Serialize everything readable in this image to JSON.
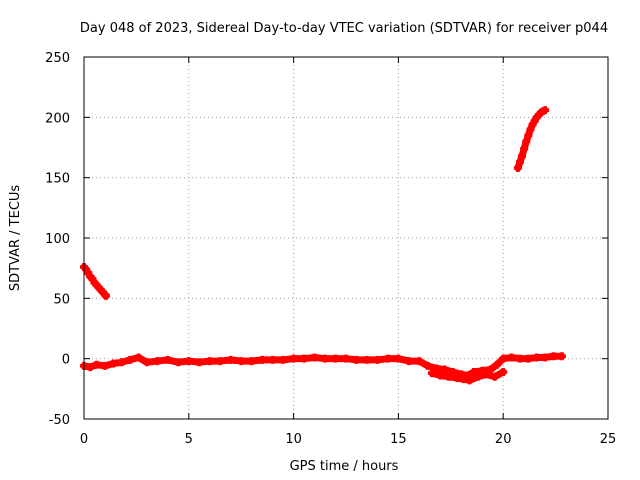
{
  "chart_data": {
    "type": "scatter",
    "title": "Day 048 of 2023, Sidereal Day-to-day VTEC variation (SDTVAR) for receiver p044",
    "xlabel": "GPS time / hours",
    "ylabel": "SDTVAR / TECUs",
    "xlim": [
      0,
      25
    ],
    "ylim": [
      -50,
      250
    ],
    "xticks": [
      0,
      5,
      10,
      15,
      20,
      25
    ],
    "yticks": [
      -50,
      0,
      50,
      100,
      150,
      200,
      250
    ],
    "grid": true,
    "marker": "plus",
    "color": "#ff0000",
    "series": [
      {
        "name": "segment-early-descent",
        "x": [
          0.0,
          0.1,
          0.2,
          0.3,
          0.4,
          0.5,
          0.6,
          0.7,
          0.8,
          0.9,
          1.0,
          1.05
        ],
        "y": [
          76,
          74,
          71,
          68,
          66,
          63,
          61,
          59,
          57,
          55,
          53,
          52
        ]
      },
      {
        "name": "segment-late-rise",
        "x": [
          20.7,
          20.8,
          20.9,
          21.0,
          21.1,
          21.2,
          21.3,
          21.4,
          21.5,
          21.6,
          21.7,
          21.8,
          21.9,
          22.0
        ],
        "y": [
          158,
          163,
          168,
          174,
          180,
          185,
          190,
          194,
          197,
          200,
          202,
          204,
          205,
          206
        ]
      },
      {
        "name": "segment-baseline",
        "x": [
          0.0,
          0.3,
          0.6,
          1.0,
          1.4,
          1.8,
          2.2,
          2.6,
          3.0,
          3.5,
          4.0,
          4.5,
          5.0,
          5.5,
          6.0,
          6.5,
          7.0,
          7.5,
          8.0,
          8.5,
          9.0,
          9.5,
          10.0,
          10.5,
          11.0,
          11.5,
          12.0,
          12.5,
          13.0,
          13.5,
          14.0,
          14.5,
          15.0,
          15.5,
          16.0,
          16.4,
          16.8,
          17.2,
          17.6,
          18.0,
          18.3,
          18.6,
          19.0,
          19.4,
          19.7,
          20.0,
          20.4,
          20.8,
          21.2,
          21.6,
          22.0,
          22.4,
          22.8
        ],
        "y": [
          -6,
          -7,
          -5,
          -6,
          -4,
          -3,
          -1,
          1,
          -3,
          -2,
          -1,
          -3,
          -2,
          -3,
          -2,
          -2,
          -1,
          -2,
          -2,
          -1,
          -1,
          -1,
          0,
          0,
          1,
          0,
          0,
          0,
          -1,
          -1,
          -1,
          0,
          0,
          -2,
          -2,
          -6,
          -8,
          -9,
          -11,
          -13,
          -14,
          -11,
          -10,
          -9,
          -5,
          0,
          1,
          0,
          0,
          1,
          1,
          2,
          2
        ]
      },
      {
        "name": "segment-scatter-dip",
        "x": [
          16.6,
          17.0,
          17.4,
          17.8,
          18.1,
          18.4,
          18.8,
          19.2,
          19.6,
          20.0
        ],
        "y": [
          -12,
          -14,
          -15,
          -16,
          -17,
          -18,
          -15,
          -13,
          -15,
          -11
        ]
      }
    ]
  }
}
